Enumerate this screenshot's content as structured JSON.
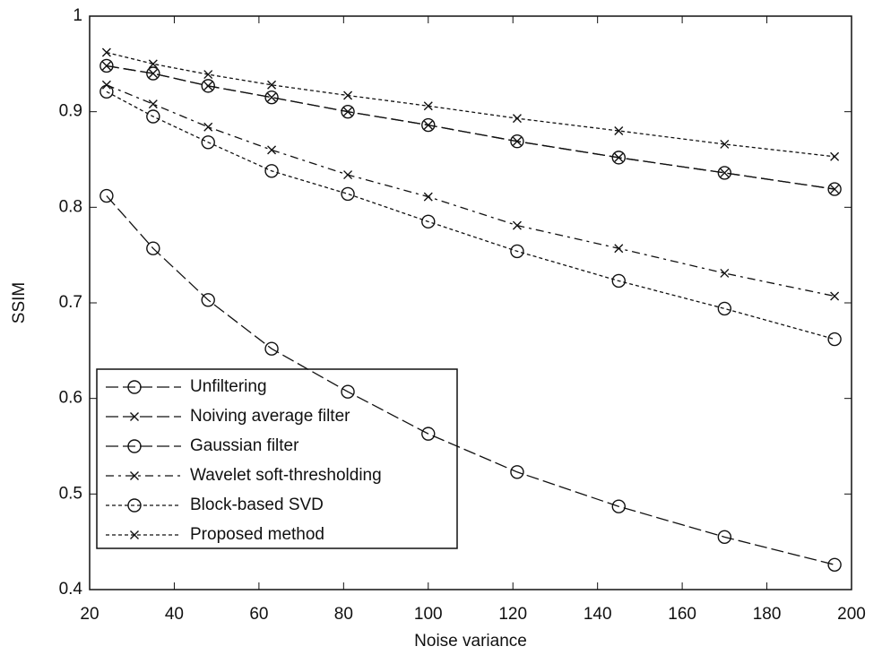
{
  "chart_data": {
    "type": "line",
    "x_label": "Noise variance",
    "y_label": "SSIM",
    "x": [
      24,
      35,
      48,
      63,
      81,
      100,
      121,
      145,
      170,
      196
    ],
    "series": [
      {
        "name": "Unfiltering",
        "color": "#111111",
        "dash": "14 5",
        "marker": "circle",
        "values": [
          0.812,
          0.757,
          0.703,
          0.652,
          0.607,
          0.563,
          0.523,
          0.487,
          0.455,
          0.426
        ]
      },
      {
        "name": "Noiving average filter",
        "color": "#111111",
        "dash": "14 5",
        "marker": "x",
        "values": [
          0.948,
          0.94,
          0.927,
          0.915,
          0.9,
          0.886,
          0.869,
          0.852,
          0.836,
          0.819
        ]
      },
      {
        "name": "Gaussian filter",
        "color": "#111111",
        "dash": "14 5",
        "marker": "circle",
        "values": [
          0.948,
          0.94,
          0.927,
          0.915,
          0.9,
          0.886,
          0.869,
          0.852,
          0.836,
          0.819
        ]
      },
      {
        "name": "Wavelet soft-thresholding",
        "color": "#111111",
        "dash": "9 5 3 5",
        "marker": "x",
        "values": [
          0.928,
          0.908,
          0.884,
          0.86,
          0.834,
          0.811,
          0.781,
          0.757,
          0.731,
          0.707
        ]
      },
      {
        "name": "Block-based SVD",
        "color": "#111111",
        "dash": "4 3",
        "marker": "circle",
        "values": [
          0.921,
          0.895,
          0.868,
          0.838,
          0.814,
          0.785,
          0.754,
          0.723,
          0.694,
          0.662
        ]
      },
      {
        "name": "Proposed method",
        "color": "#111111",
        "dash": "4 3",
        "marker": "x",
        "values": [
          0.962,
          0.95,
          0.939,
          0.928,
          0.917,
          0.906,
          0.893,
          0.88,
          0.866,
          0.853
        ]
      }
    ],
    "xlim": [
      20,
      200
    ],
    "xticks": [
      20,
      40,
      60,
      80,
      100,
      120,
      140,
      160,
      180,
      200
    ],
    "ylim": [
      0.4,
      1
    ],
    "yticks": [
      0.4,
      0.5,
      0.6,
      0.7,
      0.8,
      0.9,
      1
    ],
    "legend": "lower left",
    "grid": false
  }
}
